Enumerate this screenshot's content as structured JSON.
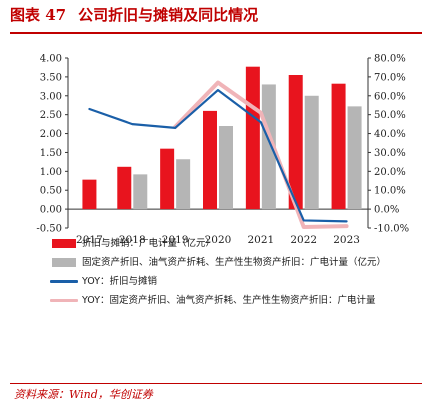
{
  "figure": {
    "label": "图表 47",
    "title": "公司折旧与摊销及同比情况",
    "source": "资料来源：Wind，华创证券"
  },
  "colors": {
    "accent": "#c00000",
    "bar_red": "#e8141e",
    "bar_gray": "#b5b5b5",
    "line_blue": "#1a5fa8",
    "line_pink": "#f0b4b8"
  },
  "chart_data": {
    "type": "bar",
    "categories": [
      "2017",
      "2018",
      "2019",
      "2020",
      "2021",
      "2022",
      "2023"
    ],
    "series": [
      {
        "name": "折旧与摊销：广电计量（亿元）",
        "type": "bar",
        "axis": "left",
        "values": [
          0.78,
          1.12,
          1.6,
          2.6,
          3.77,
          3.55,
          3.32
        ]
      },
      {
        "name": "固定资产折旧、油气资产折耗、生产性生物资产折旧：广电计量（亿元）",
        "type": "bar",
        "axis": "left",
        "values": [
          null,
          0.92,
          1.32,
          2.2,
          3.3,
          3.0,
          2.72
        ]
      },
      {
        "name": "YOY：折旧与摊销",
        "type": "line",
        "axis": "right",
        "values": [
          53.0,
          45.0,
          43.0,
          63.0,
          46.0,
          -6.0,
          -6.5
        ]
      },
      {
        "name": "YOY：固定资产折旧、油气资产折耗、生产性生物资产折旧：广电计量",
        "type": "line",
        "axis": "right",
        "values": [
          null,
          null,
          43.5,
          67.0,
          51.0,
          -9.5,
          -9.0
        ]
      }
    ],
    "y_left": {
      "min": -0.5,
      "max": 4.0,
      "ticks": [
        "-0.50",
        "0.00",
        "0.50",
        "1.00",
        "1.50",
        "2.00",
        "2.50",
        "3.00",
        "3.50",
        "4.00"
      ]
    },
    "y_right": {
      "min": -10,
      "max": 80,
      "ticks": [
        "-10.0%",
        "0.0%",
        "10.0%",
        "20.0%",
        "30.0%",
        "40.0%",
        "50.0%",
        "60.0%",
        "70.0%",
        "80.0%"
      ]
    },
    "legend_position": "bottom"
  },
  "legend": [
    {
      "text": "折旧与摊销：广电计量（亿元）"
    },
    {
      "text": "固定资产折旧、油气资产折耗、生产性生物资产折旧：广电计量（亿元）"
    },
    {
      "text": "YOY：折旧与摊销"
    },
    {
      "text": "YOY：固定资产折旧、油气资产折耗、生产性生物资产折旧：广电计量"
    }
  ]
}
